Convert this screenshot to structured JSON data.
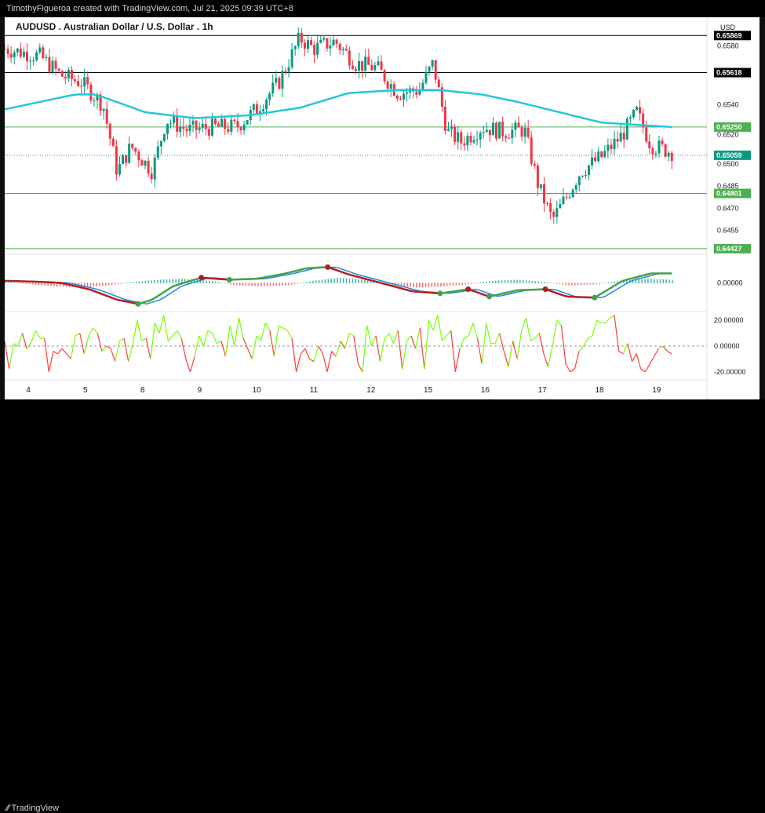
{
  "header": {
    "text": "TimothyFigueroa created with TradingView.com, Jul 21, 2025 09:39 UTC+8"
  },
  "footer": {
    "logo_text": "TradingView"
  },
  "chart_data": [
    {
      "panel": "price",
      "type": "candlestick",
      "title": "AUDUSD . Australian Dollar / U.S. Dollar . 1h",
      "currency_label": "USD",
      "ylim": [
        0.644,
        0.6595
      ],
      "y_ticks": [
        0.658,
        0.654,
        0.652,
        0.65,
        0.6485,
        0.647,
        0.6455
      ],
      "x_labels": [
        "4",
        "5",
        "8",
        "9",
        "10",
        "11",
        "12",
        "15",
        "16",
        "17",
        "18",
        "19"
      ],
      "horizontal_levels": [
        {
          "value": 0.65869,
          "label": "0.65869",
          "color": "#000000"
        },
        {
          "value": 0.65618,
          "label": "0.65618",
          "color": "#000000"
        },
        {
          "value": 0.6525,
          "label": "0.65250",
          "color": "#4caf50"
        },
        {
          "value": 0.64801,
          "label": "0.64801",
          "color": "#4caf50"
        },
        {
          "value": 0.64427,
          "label": "0.64427",
          "color": "#4caf50"
        }
      ],
      "current_price": {
        "value": 0.65059,
        "label": "0.65059",
        "color": "#089981"
      },
      "up_color": "#089981",
      "down_color": "#f23645",
      "ma_color": "#26c6da",
      "close_path": [
        [
          0,
          0.6578
        ],
        [
          0.05,
          0.6573
        ],
        [
          0.08,
          0.656
        ],
        [
          0.11,
          0.6555
        ],
        [
          0.14,
          0.654
        ],
        [
          0.16,
          0.6495
        ],
        [
          0.18,
          0.6512
        ],
        [
          0.21,
          0.6495
        ],
        [
          0.23,
          0.653
        ],
        [
          0.26,
          0.6523
        ],
        [
          0.3,
          0.6525
        ],
        [
          0.33,
          0.6525
        ],
        [
          0.36,
          0.6538
        ],
        [
          0.39,
          0.6555
        ],
        [
          0.42,
          0.6585
        ],
        [
          0.44,
          0.6578
        ],
        [
          0.47,
          0.6583
        ],
        [
          0.5,
          0.6568
        ],
        [
          0.53,
          0.6565
        ],
        [
          0.56,
          0.6548
        ],
        [
          0.59,
          0.655
        ],
        [
          0.61,
          0.6568
        ],
        [
          0.63,
          0.6522
        ],
        [
          0.65,
          0.6515
        ],
        [
          0.68,
          0.6525
        ],
        [
          0.71,
          0.6522
        ],
        [
          0.74,
          0.6523
        ],
        [
          0.76,
          0.6485
        ],
        [
          0.78,
          0.6462
        ],
        [
          0.8,
          0.6478
        ],
        [
          0.82,
          0.6495
        ],
        [
          0.85,
          0.6505
        ],
        [
          0.88,
          0.652
        ],
        [
          0.9,
          0.6535
        ],
        [
          0.92,
          0.6513
        ],
        [
          0.95,
          0.6508
        ]
      ],
      "ma_path": [
        [
          0,
          0.6537
        ],
        [
          0.1,
          0.6547
        ],
        [
          0.13,
          0.6547
        ],
        [
          0.2,
          0.6535
        ],
        [
          0.27,
          0.6531
        ],
        [
          0.35,
          0.6533
        ],
        [
          0.42,
          0.6538
        ],
        [
          0.49,
          0.6548
        ],
        [
          0.56,
          0.655
        ],
        [
          0.62,
          0.655
        ],
        [
          0.68,
          0.6547
        ],
        [
          0.73,
          0.6542
        ],
        [
          0.79,
          0.6535
        ],
        [
          0.85,
          0.6528
        ],
        [
          0.95,
          0.6525
        ]
      ]
    },
    {
      "panel": "oscillator-1",
      "type": "line+histogram",
      "zero_label": "0.00000",
      "fast_color": "#1e88e5",
      "bull_color": "#43a047",
      "bear_color": "#b71c1c",
      "hist_up_color": "#26a69a",
      "hist_down_color": "#ef5350",
      "line_path": [
        [
          0,
          0.2
        ],
        [
          0.05,
          0.1
        ],
        [
          0.08,
          0.0
        ],
        [
          0.12,
          -0.6
        ],
        [
          0.16,
          -1.6
        ],
        [
          0.19,
          -2.0
        ],
        [
          0.21,
          -1.6
        ],
        [
          0.24,
          -0.3
        ],
        [
          0.28,
          0.5
        ],
        [
          0.32,
          0.3
        ],
        [
          0.36,
          0.4
        ],
        [
          0.4,
          0.9
        ],
        [
          0.43,
          1.4
        ],
        [
          0.46,
          1.5
        ],
        [
          0.49,
          0.8
        ],
        [
          0.53,
          0.1
        ],
        [
          0.58,
          -0.8
        ],
        [
          0.62,
          -1.0
        ],
        [
          0.66,
          -0.6
        ],
        [
          0.69,
          -1.3
        ],
        [
          0.73,
          -0.7
        ],
        [
          0.77,
          -0.6
        ],
        [
          0.8,
          -1.3
        ],
        [
          0.84,
          -1.4
        ],
        [
          0.88,
          0.2
        ],
        [
          0.92,
          0.9
        ],
        [
          0.95,
          0.9
        ]
      ],
      "hist_values": [
        0.1,
        -0.1,
        -0.3,
        -0.4,
        -0.2,
        0.1,
        0.3,
        0.4,
        0.2,
        -0.2,
        -0.3,
        -0.2,
        0.2,
        0.5,
        0.3,
        -0.2,
        -0.4,
        -0.3,
        -0.1,
        0.2,
        0.3,
        0.1,
        -0.2,
        -0.1,
        0.2,
        0.4,
        0.3
      ]
    },
    {
      "panel": "oscillator-2",
      "type": "line",
      "tick_labels": [
        "20.00000",
        "0.00000",
        "-20.00000"
      ],
      "ylim": [
        -25,
        25
      ],
      "pos_color": "#76ff03",
      "neg_color": "#ff3d3d",
      "values": [
        4,
        -18,
        2,
        0,
        10,
        -2,
        3,
        12,
        6,
        6,
        -20,
        -4,
        -6,
        -2,
        -6,
        -10,
        8,
        10,
        -6,
        8,
        14,
        10,
        -4,
        0,
        -2,
        -12,
        4,
        6,
        -12,
        2,
        20,
        4,
        6,
        -10,
        18,
        10,
        24,
        4,
        8,
        12,
        6,
        -10,
        -20,
        -8,
        8,
        0,
        12,
        10,
        2,
        4,
        -8,
        16,
        0,
        22,
        6,
        -2,
        -10,
        8,
        4,
        18,
        12,
        -8,
        16,
        14,
        12,
        6,
        -20,
        -6,
        -2,
        -10,
        -12,
        0,
        -6,
        -20,
        -4,
        -8,
        4,
        -2,
        10,
        8,
        -14,
        -20,
        16,
        0,
        8,
        -12,
        6,
        10,
        2,
        12,
        -18,
        4,
        8,
        -2,
        14,
        -18,
        20,
        12,
        24,
        4,
        8,
        12,
        -20,
        -2,
        6,
        8,
        18,
        6,
        -14,
        18,
        2,
        2,
        10,
        -4,
        -16,
        4,
        -10,
        12,
        22,
        4,
        6,
        10,
        -6,
        -16,
        0,
        20,
        16,
        -14,
        -20,
        -18,
        -4,
        0,
        6,
        8,
        20,
        18,
        18,
        22,
        24,
        -4,
        -6,
        2,
        -12,
        -6,
        -18,
        -20,
        -14,
        -8,
        -2,
        0,
        -4,
        -6
      ]
    }
  ]
}
